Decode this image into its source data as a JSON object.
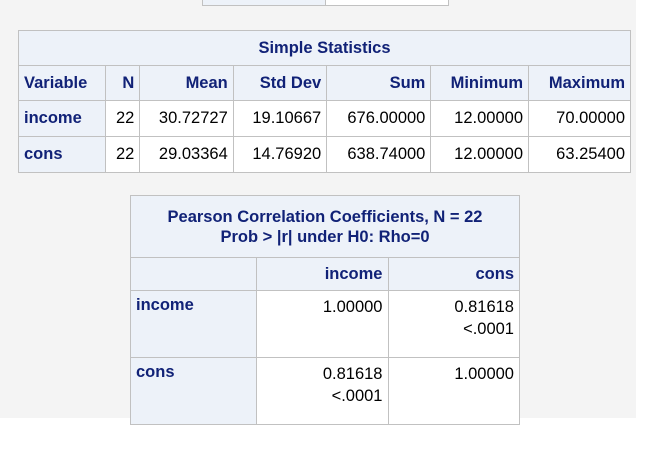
{
  "simple_stats": {
    "title": "Simple Statistics",
    "columns": [
      "Variable",
      "N",
      "Mean",
      "Std Dev",
      "Sum",
      "Minimum",
      "Maximum"
    ],
    "rows": [
      {
        "variable": "income",
        "n": "22",
        "mean": "30.72727",
        "std_dev": "19.10667",
        "sum": "676.00000",
        "minimum": "12.00000",
        "maximum": "70.00000"
      },
      {
        "variable": "cons",
        "n": "22",
        "mean": "29.03364",
        "std_dev": "14.76920",
        "sum": "638.74000",
        "minimum": "12.00000",
        "maximum": "63.25400"
      }
    ]
  },
  "pearson": {
    "title_line1": "Pearson Correlation Coefficients, N = 22",
    "title_line2": "Prob > |r| under H0: Rho=0",
    "columns": [
      "income",
      "cons"
    ],
    "rows": [
      {
        "label": "income",
        "cells": [
          {
            "r": "1.00000",
            "p": ""
          },
          {
            "r": "0.81618",
            "p": "<.0001"
          }
        ]
      },
      {
        "label": "cons",
        "cells": [
          {
            "r": "0.81618",
            "p": "<.0001"
          },
          {
            "r": "1.00000",
            "p": ""
          }
        ]
      }
    ]
  }
}
